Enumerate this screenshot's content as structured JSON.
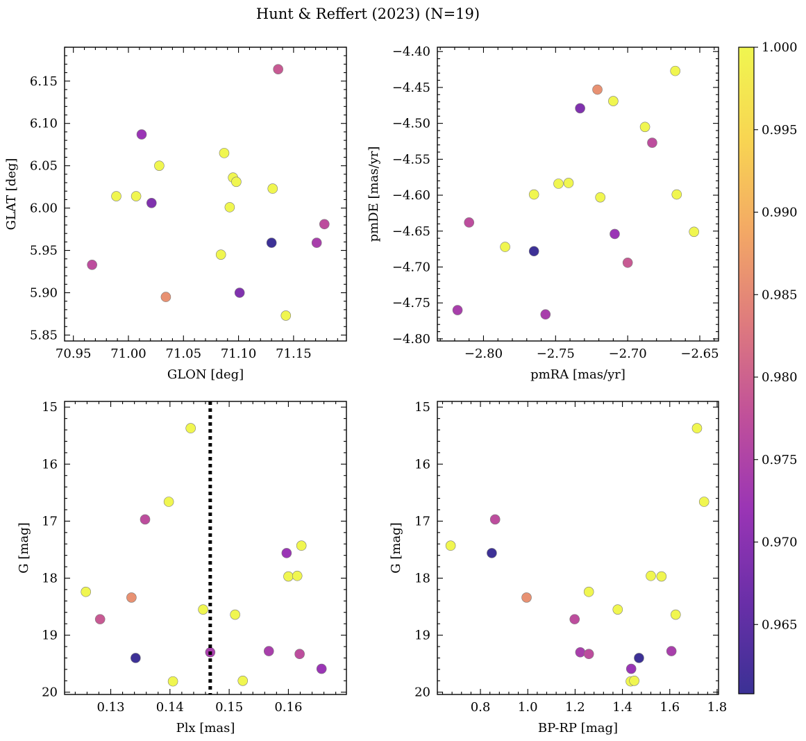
{
  "figure": {
    "title": "Hunt & Reffert (2023) (N=19)"
  },
  "chart_data": [
    {
      "type": "scatter",
      "xlabel": "GLON [deg]",
      "ylabel": "GLAT [deg]",
      "xlim": [
        70.942,
        71.198
      ],
      "ylim": [
        5.843,
        6.19
      ],
      "y_inverted": false,
      "xticks": [
        70.95,
        71.0,
        71.05,
        71.1,
        71.15
      ],
      "xtick_labels": [
        "70.95",
        "71.00",
        "71.05",
        "71.10",
        "71.15"
      ],
      "yticks": [
        5.85,
        5.9,
        5.95,
        6.0,
        6.05,
        6.1,
        6.15
      ],
      "ytick_labels": [
        "5.85",
        "5.90",
        "5.95",
        "6.00",
        "6.05",
        "6.10",
        "6.15"
      ],
      "points": [
        {
          "x": 71.136,
          "y": 6.164,
          "c": 0.979
        },
        {
          "x": 71.012,
          "y": 6.087,
          "c": 0.972
        },
        {
          "x": 71.087,
          "y": 6.065,
          "c": 1.0
        },
        {
          "x": 71.028,
          "y": 6.05,
          "c": 1.0
        },
        {
          "x": 71.095,
          "y": 6.036,
          "c": 1.0
        },
        {
          "x": 71.098,
          "y": 6.031,
          "c": 1.0
        },
        {
          "x": 71.131,
          "y": 6.023,
          "c": 1.0
        },
        {
          "x": 70.989,
          "y": 6.014,
          "c": 1.0
        },
        {
          "x": 71.007,
          "y": 6.014,
          "c": 1.0
        },
        {
          "x": 71.021,
          "y": 6.006,
          "c": 0.969
        },
        {
          "x": 71.092,
          "y": 6.001,
          "c": 1.0
        },
        {
          "x": 71.178,
          "y": 5.981,
          "c": 0.977
        },
        {
          "x": 71.13,
          "y": 5.959,
          "c": 0.961
        },
        {
          "x": 71.171,
          "y": 5.959,
          "c": 0.974
        },
        {
          "x": 71.084,
          "y": 5.945,
          "c": 1.0
        },
        {
          "x": 70.967,
          "y": 5.933,
          "c": 0.977
        },
        {
          "x": 71.101,
          "y": 5.9,
          "c": 0.969
        },
        {
          "x": 71.034,
          "y": 5.895,
          "c": 0.986
        },
        {
          "x": 71.143,
          "y": 5.873,
          "c": 1.0
        }
      ]
    },
    {
      "type": "scatter",
      "xlabel": "pmRA [mas/yr]",
      "ylabel": "pmDE [mas/yr]",
      "xlim": [
        -2.832,
        -2.637
      ],
      "ylim": [
        -4.803,
        -4.394
      ],
      "y_inverted": false,
      "xticks": [
        -2.8,
        -2.75,
        -2.7,
        -2.65
      ],
      "xtick_labels": [
        "−2.80",
        "−2.75",
        "−2.70",
        "−2.65"
      ],
      "yticks": [
        -4.8,
        -4.75,
        -4.7,
        -4.65,
        -4.6,
        -4.55,
        -4.5,
        -4.45,
        -4.4
      ],
      "ytick_labels": [
        "−4.80",
        "−4.75",
        "−4.70",
        "−4.65",
        "−4.60",
        "−4.55",
        "−4.50",
        "−4.45",
        "−4.40"
      ],
      "points": [
        {
          "x": -2.667,
          "y": -4.427,
          "c": 1.0
        },
        {
          "x": -2.721,
          "y": -4.453,
          "c": 0.986
        },
        {
          "x": -2.71,
          "y": -4.469,
          "c": 1.0
        },
        {
          "x": -2.733,
          "y": -4.479,
          "c": 0.969
        },
        {
          "x": -2.688,
          "y": -4.505,
          "c": 1.0
        },
        {
          "x": -2.683,
          "y": -4.527,
          "c": 0.977
        },
        {
          "x": -2.748,
          "y": -4.584,
          "c": 1.0
        },
        {
          "x": -2.741,
          "y": -4.583,
          "c": 1.0
        },
        {
          "x": -2.765,
          "y": -4.599,
          "c": 1.0
        },
        {
          "x": -2.719,
          "y": -4.603,
          "c": 1.0
        },
        {
          "x": -2.666,
          "y": -4.599,
          "c": 1.0
        },
        {
          "x": -2.81,
          "y": -4.638,
          "c": 0.977
        },
        {
          "x": -2.709,
          "y": -4.654,
          "c": 0.972
        },
        {
          "x": -2.654,
          "y": -4.651,
          "c": 1.0
        },
        {
          "x": -2.785,
          "y": -4.672,
          "c": 1.0
        },
        {
          "x": -2.765,
          "y": -4.678,
          "c": 0.961
        },
        {
          "x": -2.7,
          "y": -4.694,
          "c": 0.979
        },
        {
          "x": -2.818,
          "y": -4.76,
          "c": 0.974
        },
        {
          "x": -2.757,
          "y": -4.766,
          "c": 0.974
        }
      ]
    },
    {
      "type": "scatter",
      "xlabel": "Plx [mas]",
      "ylabel": "G [mag]",
      "xlim": [
        0.1222,
        0.1698
      ],
      "ylim": [
        20.04,
        14.9
      ],
      "y_inverted": true,
      "vline_x": 0.1468,
      "xticks": [
        0.13,
        0.14,
        0.15,
        0.16
      ],
      "xtick_labels": [
        "0.13",
        "0.14",
        "0.15",
        "0.16"
      ],
      "yticks": [
        15,
        16,
        17,
        18,
        19,
        20
      ],
      "ytick_labels": [
        "15",
        "16",
        "17",
        "18",
        "19",
        "20"
      ],
      "points": [
        {
          "x": 0.1435,
          "y": 15.37,
          "c": 1.0
        },
        {
          "x": 0.1398,
          "y": 16.66,
          "c": 1.0
        },
        {
          "x": 0.1358,
          "y": 16.97,
          "c": 0.977
        },
        {
          "x": 0.1622,
          "y": 17.43,
          "c": 1.0
        },
        {
          "x": 0.1597,
          "y": 17.56,
          "c": 0.972
        },
        {
          "x": 0.16,
          "y": 17.97,
          "c": 1.0
        },
        {
          "x": 0.1615,
          "y": 17.96,
          "c": 1.0
        },
        {
          "x": 0.1258,
          "y": 18.24,
          "c": 1.0
        },
        {
          "x": 0.1335,
          "y": 18.34,
          "c": 0.986
        },
        {
          "x": 0.1456,
          "y": 18.55,
          "c": 1.0
        },
        {
          "x": 0.151,
          "y": 18.64,
          "c": 1.0
        },
        {
          "x": 0.1282,
          "y": 18.72,
          "c": 0.979
        },
        {
          "x": 0.1468,
          "y": 19.3,
          "c": 0.974
        },
        {
          "x": 0.1567,
          "y": 19.28,
          "c": 0.974
        },
        {
          "x": 0.1619,
          "y": 19.33,
          "c": 0.977
        },
        {
          "x": 0.1342,
          "y": 19.4,
          "c": 0.961
        },
        {
          "x": 0.1656,
          "y": 19.59,
          "c": 0.972
        },
        {
          "x": 0.1405,
          "y": 19.81,
          "c": 1.0
        },
        {
          "x": 0.1523,
          "y": 19.8,
          "c": 1.0
        }
      ]
    },
    {
      "type": "scatter",
      "xlabel": "BP-RP [mag]",
      "ylabel": "G [mag]",
      "xlim": [
        0.618,
        1.806
      ],
      "ylim": [
        20.04,
        14.9
      ],
      "y_inverted": true,
      "xticks": [
        0.8,
        1.0,
        1.2,
        1.4,
        1.6,
        1.8
      ],
      "xtick_labels": [
        "0.8",
        "1.0",
        "1.2",
        "1.4",
        "1.6",
        "1.8"
      ],
      "yticks": [
        15,
        16,
        17,
        18,
        19,
        20
      ],
      "ytick_labels": [
        "15",
        "16",
        "17",
        "18",
        "19",
        "20"
      ],
      "points": [
        {
          "x": 1.715,
          "y": 15.37,
          "c": 1.0
        },
        {
          "x": 1.745,
          "y": 16.66,
          "c": 1.0
        },
        {
          "x": 0.862,
          "y": 16.97,
          "c": 0.977
        },
        {
          "x": 0.674,
          "y": 17.43,
          "c": 1.0
        },
        {
          "x": 0.848,
          "y": 17.56,
          "c": 0.961
        },
        {
          "x": 1.52,
          "y": 17.96,
          "c": 1.0
        },
        {
          "x": 1.565,
          "y": 17.97,
          "c": 1.0
        },
        {
          "x": 1.258,
          "y": 18.24,
          "c": 1.0
        },
        {
          "x": 0.995,
          "y": 18.34,
          "c": 0.986
        },
        {
          "x": 1.38,
          "y": 18.55,
          "c": 1.0
        },
        {
          "x": 1.625,
          "y": 18.64,
          "c": 1.0
        },
        {
          "x": 1.198,
          "y": 18.72,
          "c": 0.977
        },
        {
          "x": 1.222,
          "y": 19.3,
          "c": 0.974
        },
        {
          "x": 1.258,
          "y": 19.33,
          "c": 0.977
        },
        {
          "x": 1.607,
          "y": 19.28,
          "c": 0.974
        },
        {
          "x": 1.47,
          "y": 19.4,
          "c": 0.961
        },
        {
          "x": 1.437,
          "y": 19.59,
          "c": 0.972
        },
        {
          "x": 1.435,
          "y": 19.81,
          "c": 1.0
        },
        {
          "x": 1.45,
          "y": 19.8,
          "c": 1.0
        }
      ]
    }
  ],
  "colorbar": {
    "cmap": "plasma",
    "range": [
      0.9608,
      1.0
    ],
    "ticks": [
      0.965,
      0.97,
      0.975,
      0.98,
      0.985,
      0.99,
      0.995,
      1.0
    ],
    "tick_labels": [
      "0.965",
      "0.970",
      "0.975",
      "0.980",
      "0.985",
      "0.990",
      "0.995",
      "1.000"
    ],
    "colors": [
      "#3b3195",
      "#6a2fa8",
      "#9a35b5",
      "#c0509a",
      "#de7a7e",
      "#f3a865",
      "#f8d552",
      "#f0f650"
    ]
  }
}
